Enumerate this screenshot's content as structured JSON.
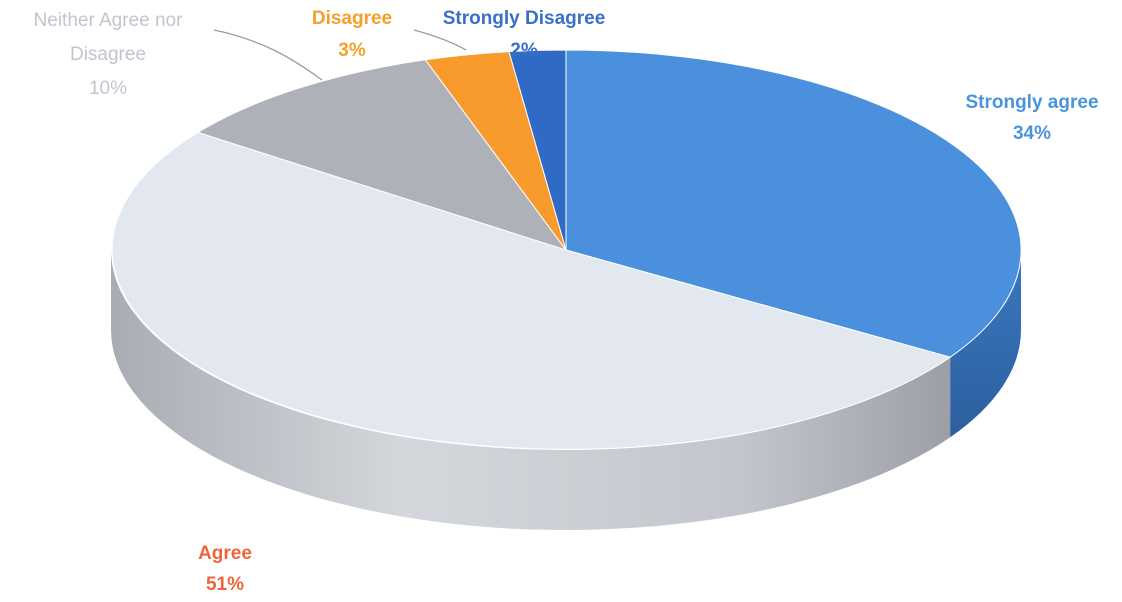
{
  "chart_data": {
    "type": "pie",
    "title": "",
    "slices": [
      {
        "name": "Strongly agree",
        "percent_label": "34%",
        "value": 34,
        "color": "#4a90dc",
        "label_color": "#4a94dc"
      },
      {
        "name": "Agree",
        "percent_label": "51%",
        "value": 51,
        "color": "#e3e7ef",
        "label_color": "#f0643c"
      },
      {
        "name": "Neither Agree nor Disagree",
        "percent_label": "10%",
        "value": 10,
        "color": "#aeb1b8",
        "label_color": "#c2c4ce"
      },
      {
        "name": "Disagree",
        "percent_label": "3%",
        "value": 3,
        "color": "#f89a2c",
        "label_color": "#f5a028"
      },
      {
        "name": "Strongly Disagree",
        "percent_label": "2%",
        "value": 2,
        "color": "#2f6bc4",
        "label_color": "#3a6fc7"
      }
    ],
    "three_d": true,
    "legend": "none"
  }
}
